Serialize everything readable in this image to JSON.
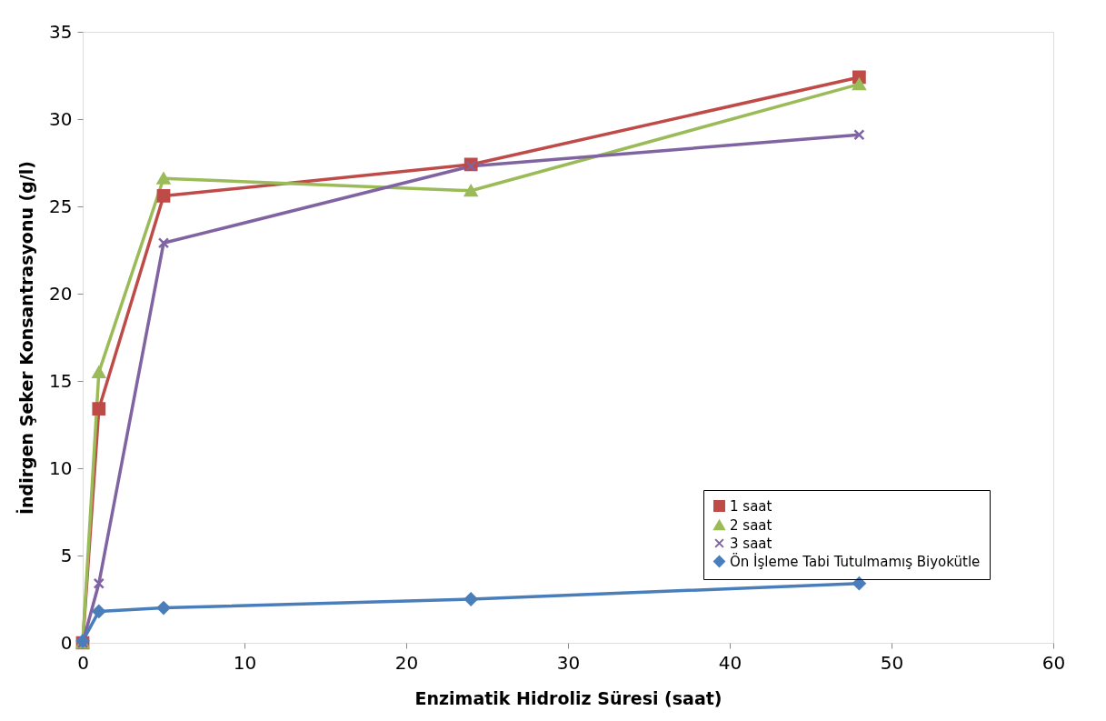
{
  "chart_data": {
    "type": "line",
    "xlabel": "Enzimatik Hidroliz Süresi (saat)",
    "ylabel": "İndirgen Şeker Konsantrasyonu (g/l)",
    "x": [
      0,
      1,
      5,
      24,
      48
    ],
    "series": [
      {
        "name": "1 saat",
        "color": "#be4b48",
        "marker": "square",
        "values": [
          0,
          13.4,
          25.6,
          27.4,
          32.4
        ]
      },
      {
        "name": "2 saat",
        "color": "#9bbb59",
        "marker": "triangle",
        "values": [
          0,
          15.5,
          26.6,
          25.9,
          32.0
        ]
      },
      {
        "name": "3 saat",
        "color": "#8064a2",
        "marker": "cross",
        "values": [
          0,
          3.4,
          22.9,
          27.3,
          29.1
        ]
      },
      {
        "name": "Ön İşleme Tabi Tutulmamış Biyokütle",
        "color": "#4a7ebb",
        "marker": "diamond",
        "values": [
          0.1,
          1.8,
          2.0,
          2.5,
          3.4
        ]
      }
    ],
    "xlim": [
      0,
      60
    ],
    "xticks": [
      0,
      10,
      20,
      30,
      40,
      50,
      60
    ],
    "ylim": [
      0,
      35
    ],
    "yticks": [
      0,
      5,
      10,
      15,
      20,
      25,
      30,
      35
    ],
    "grid": false,
    "legend": "bottom right",
    "line_style": "solid"
  }
}
